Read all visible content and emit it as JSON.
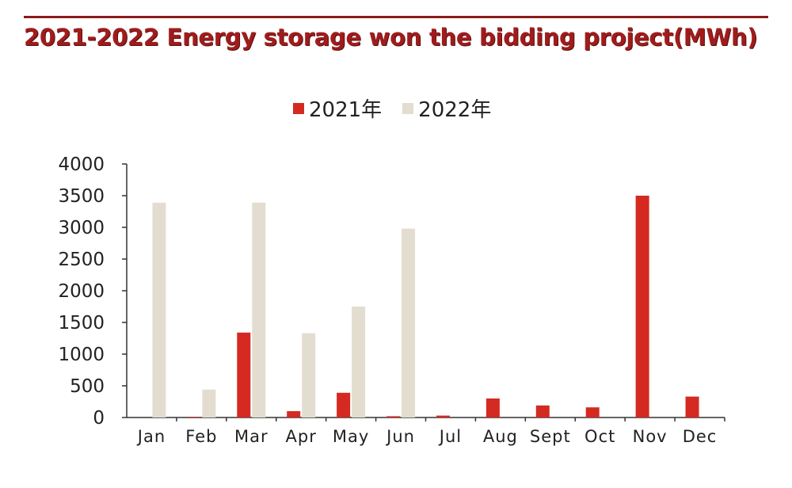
{
  "header": {
    "title": "2021-2022 Energy storage won the bidding project(MWh)"
  },
  "colors": {
    "accent": "#a01c1c",
    "series_2021": "#d42a22",
    "series_2022": "#e3ddd0",
    "axis": "#333333"
  },
  "chart_data": {
    "type": "bar",
    "title": "",
    "xlabel": "",
    "ylabel": "",
    "categories": [
      "Jan",
      "Feb",
      "Mar",
      "Apr",
      "May",
      "Jun",
      "Jul",
      "Aug",
      "Sept",
      "Oct",
      "Nov",
      "Dec"
    ],
    "series": [
      {
        "name": "2021年",
        "color": "#d42a22",
        "values": [
          0,
          10,
          1340,
          100,
          390,
          20,
          30,
          300,
          190,
          160,
          3500,
          330
        ]
      },
      {
        "name": "2022年",
        "color": "#e3ddd0",
        "values": [
          3390,
          440,
          3390,
          1330,
          1750,
          2980,
          null,
          null,
          null,
          null,
          null,
          null
        ]
      }
    ],
    "ylim": [
      0,
      4000
    ],
    "yticks": [
      0,
      500,
      1000,
      1500,
      2000,
      2500,
      3000,
      3500,
      4000
    ],
    "grid": false,
    "legend_position": "top-center"
  }
}
